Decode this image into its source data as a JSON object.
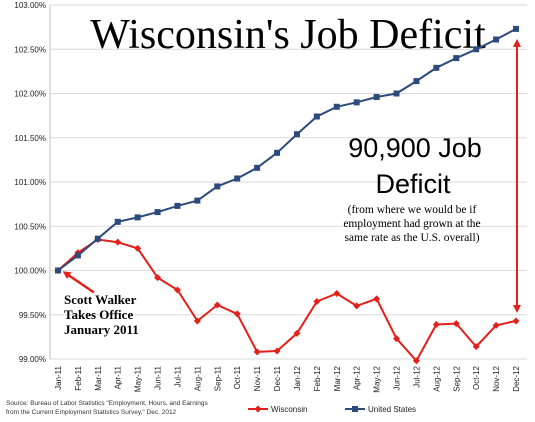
{
  "colors": {
    "wisconsin": "#e3201b",
    "united_states": "#2c4a7c",
    "arrow": "#e3201b",
    "grid": "#d9d9d9"
  },
  "source": {
    "line1": "Source: Bureau of Labor Statistics \"Employment, Hours, and Earnings",
    "line2": "from the Current Employment Statistics Survey,\" Dec. 2012"
  },
  "chart_data": {
    "type": "line",
    "title": "Wisconsin's Job Deficit",
    "categories": [
      "Jan-11",
      "Feb-11",
      "Mar-11",
      "Apr-11",
      "May-11",
      "Jun-11",
      "Jul-11",
      "Aug-11",
      "Sep-11",
      "Oct-11",
      "Nov-11",
      "Dec-11",
      "Jan-12",
      "Feb-12",
      "Mar-12",
      "Apr-12",
      "May-12",
      "Jun-12",
      "Jul-12",
      "Aug-12",
      "Sep-12",
      "Oct-12",
      "Nov-12",
      "Dec-12"
    ],
    "series": [
      {
        "name": "Wisconsin",
        "marker": "diamond",
        "values": [
          100.0,
          100.2,
          100.35,
          100.32,
          100.25,
          99.92,
          99.78,
          99.43,
          99.61,
          99.51,
          99.08,
          99.09,
          99.29,
          99.65,
          99.74,
          99.6,
          99.68,
          99.23,
          98.98,
          99.39,
          99.4,
          99.14,
          99.38,
          99.43
        ]
      },
      {
        "name": "United States",
        "marker": "square",
        "values": [
          100.0,
          100.17,
          100.36,
          100.55,
          100.6,
          100.66,
          100.73,
          100.79,
          100.95,
          101.04,
          101.16,
          101.33,
          101.54,
          101.74,
          101.85,
          101.9,
          101.96,
          102.0,
          102.14,
          102.29,
          102.4,
          102.5,
          102.61,
          102.73
        ]
      }
    ],
    "ylim": [
      99.0,
      103.0
    ],
    "ytick_labels": [
      "99.00%",
      "99.50%",
      "100.00%",
      "100.50%",
      "101.00%",
      "101.50%",
      "102.00%",
      "102.50%",
      "103.00%"
    ],
    "grid": true,
    "legend_position": "bottom",
    "annotations": {
      "deficit_value": "90,900 Job",
      "deficit_word": "Deficit",
      "deficit_note": [
        "(from where we would be if",
        "employment had grown at the",
        "same rate as the U.S. overall)"
      ],
      "walker": [
        "Scott Walker",
        "Takes Office",
        "January 2011"
      ]
    }
  }
}
